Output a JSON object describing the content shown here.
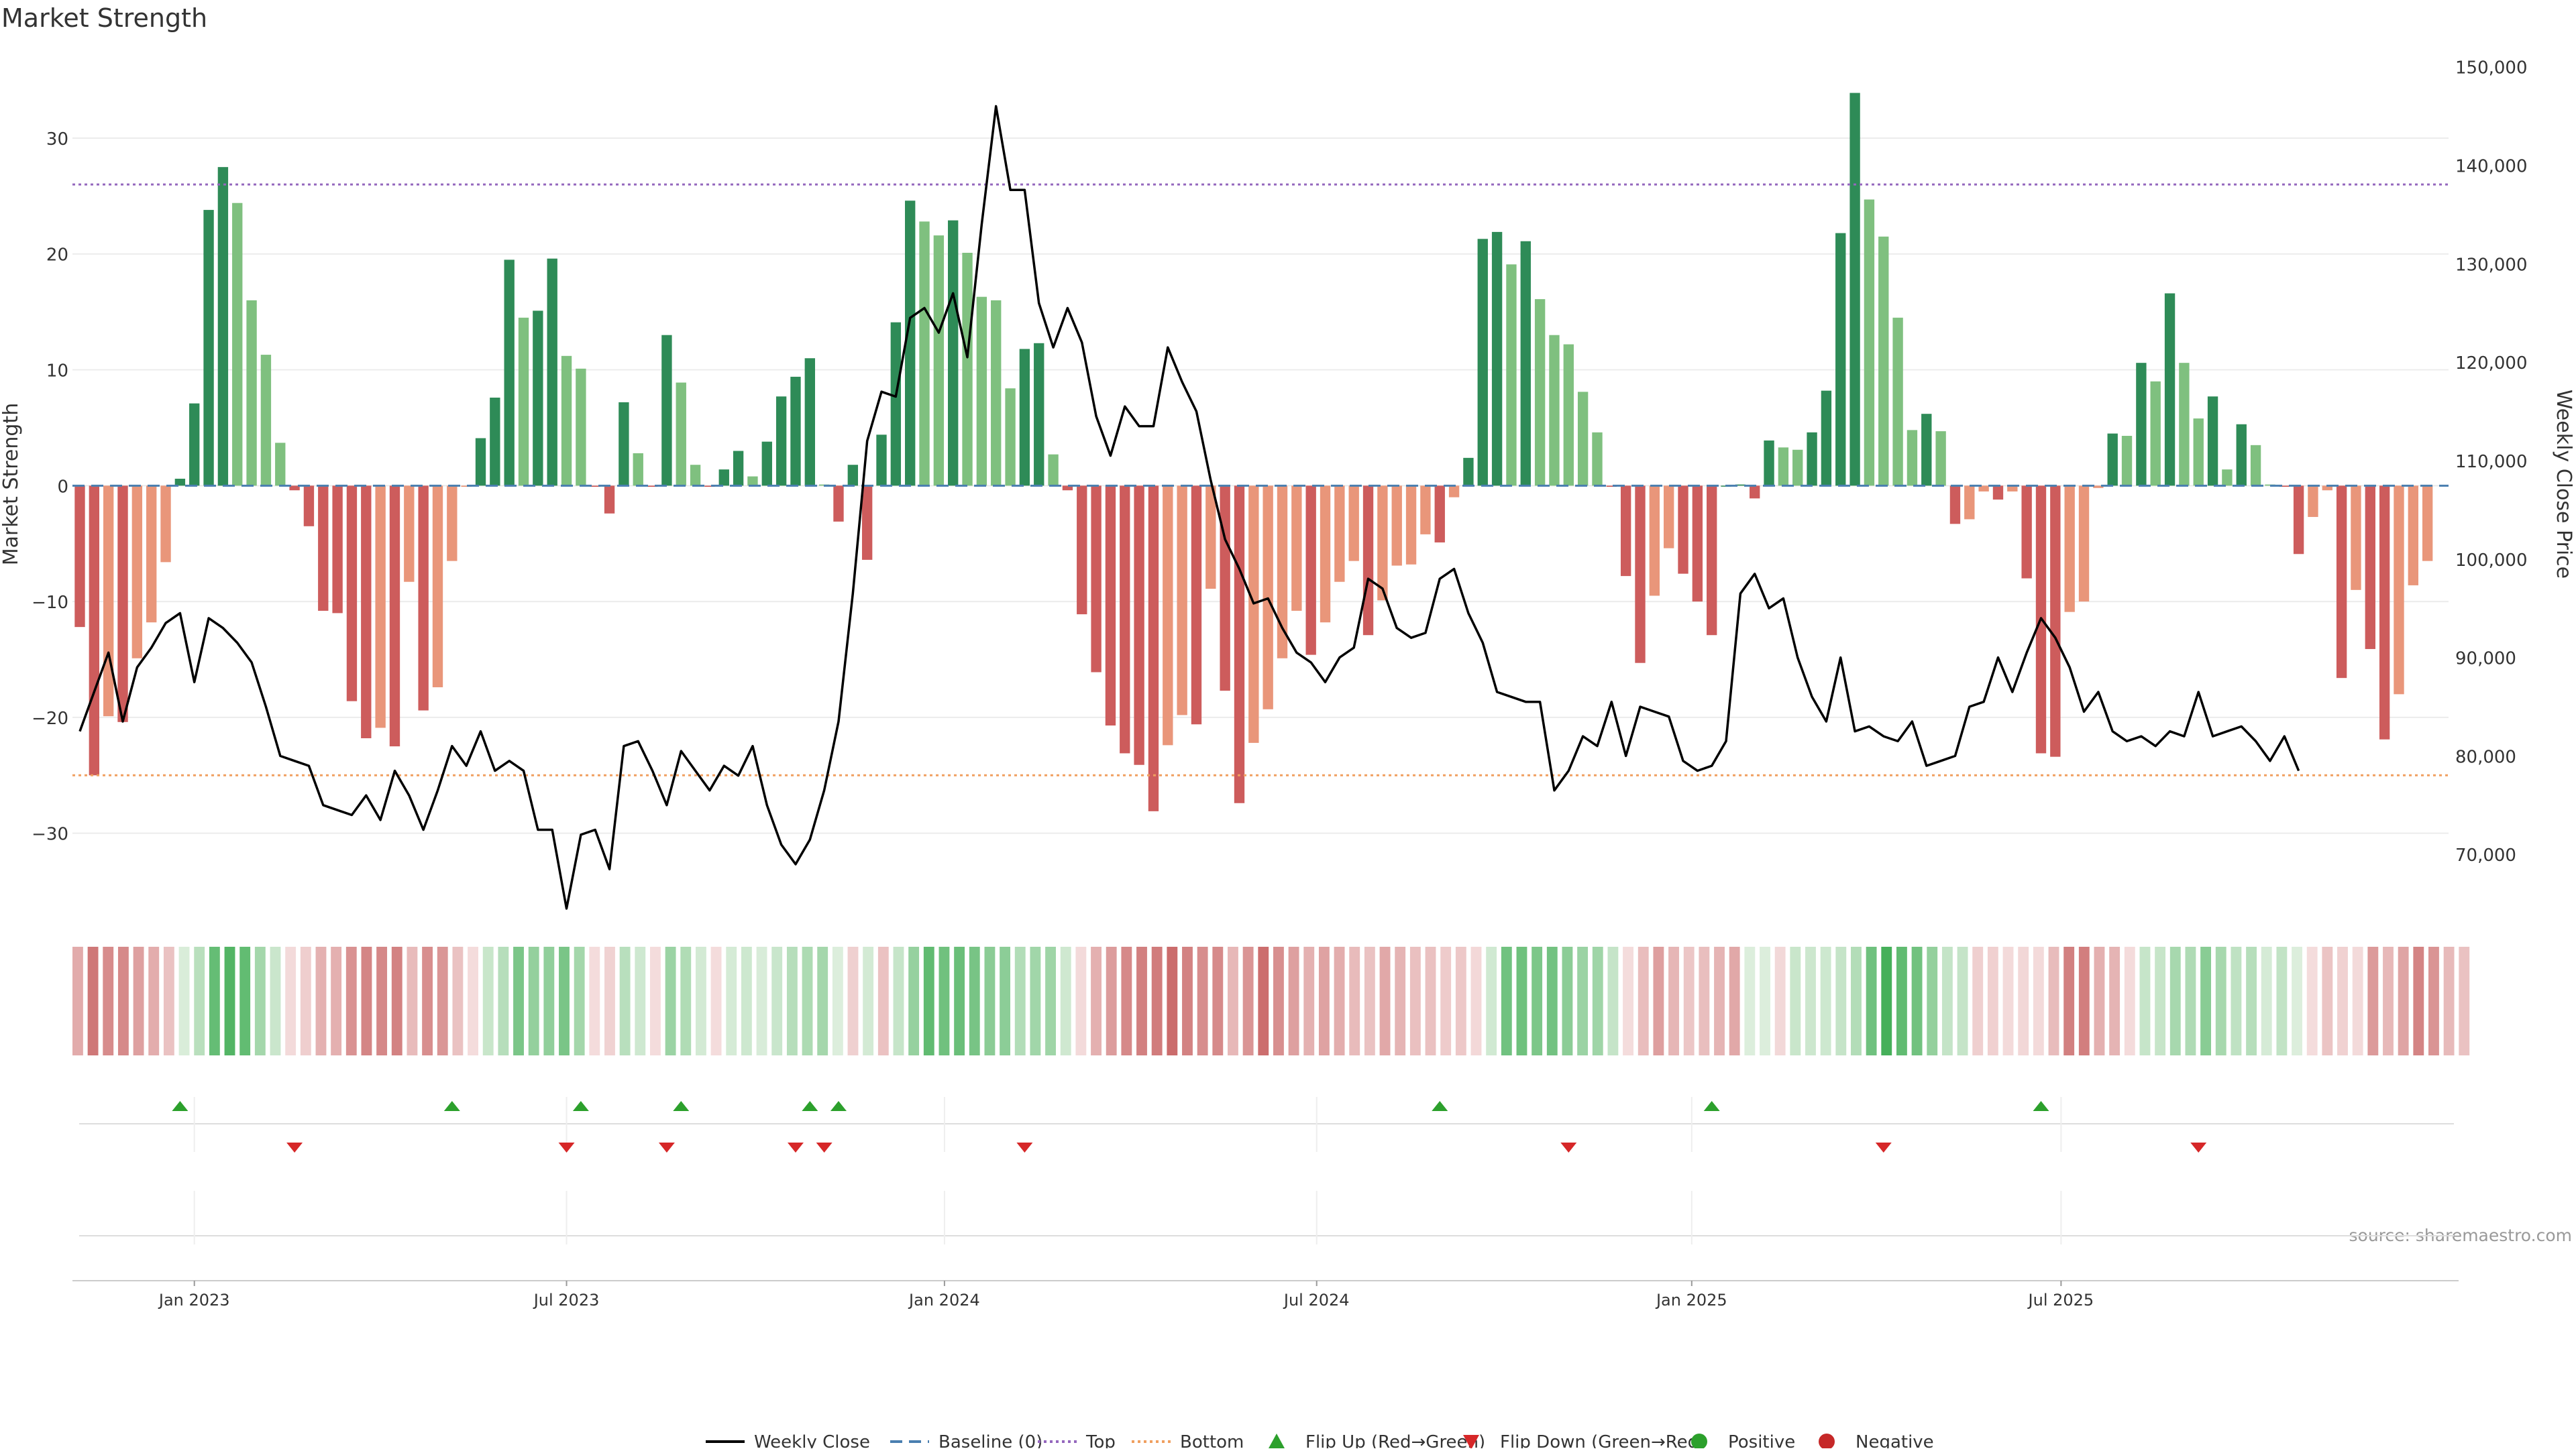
{
  "title": "Market Strength",
  "source": "source: sharemaestro.com",
  "colors": {
    "strong_green": "#2e8b57",
    "light_green": "#7fc07f",
    "strong_red": "#cd5c5c",
    "light_red": "#e9967a",
    "baseline": "#4a7fb0",
    "top_line": "#9467bd",
    "bottom_line": "#f0a060",
    "price_line": "#000000",
    "flip_up": "#2ca02c",
    "flip_down": "#d62728"
  },
  "legend": [
    {
      "label": "Weekly Close",
      "kind": "line",
      "color": "#000000"
    },
    {
      "label": "Baseline (0)",
      "kind": "dash",
      "color": "#4a7fb0"
    },
    {
      "label": "Top",
      "kind": "dot",
      "color": "#9467bd"
    },
    {
      "label": "Bottom",
      "kind": "dot",
      "color": "#f0a060"
    },
    {
      "label": "Flip Up (Red→Green)",
      "kind": "up",
      "color": "#2ca02c"
    },
    {
      "label": "Flip Down (Green→Red)",
      "kind": "down",
      "color": "#d62728"
    },
    {
      "label": "Positive",
      "kind": "circle",
      "color": "#2ca02c"
    },
    {
      "label": "Negative",
      "kind": "circle",
      "color": "#c62828"
    }
  ],
  "chart_data": {
    "type": "bar",
    "ylabel": "Market Strength",
    "y2label": "Weekly Close Price",
    "ylim": [
      -36.5,
      37
    ],
    "y2lim": [
      64500,
      151000
    ],
    "yticks": [
      -30,
      -20,
      -10,
      0,
      10,
      20,
      30
    ],
    "y2ticks": [
      70000,
      80000,
      90000,
      100000,
      110000,
      120000,
      130000,
      140000,
      150000
    ],
    "y2tick_labels": [
      "70,000",
      "80,000",
      "90,000",
      "100,000",
      "110,000",
      "120,000",
      "130,000",
      "140,000",
      "150,000"
    ],
    "x_tick_labels": [
      "Jan 2023",
      "Jul 2023",
      "Jan 2024",
      "Jul 2024",
      "Jan 2025",
      "Jul 2025"
    ],
    "x_tick_weeks": [
      8,
      34,
      60.4,
      86.4,
      112.6,
      138.4
    ],
    "top_level": 26,
    "bottom_level": -25,
    "grid": true,
    "legend_position": "bottom",
    "series": [
      {
        "name": "Market Strength",
        "values": [
          -12.2,
          -25,
          -19.9,
          -20.4,
          -14.9,
          -11.8,
          -6.6,
          0.6,
          7.1,
          23.8,
          27.5,
          24.4,
          16,
          11.3,
          3.7,
          -0.4,
          -3.5,
          -10.8,
          -11,
          -18.6,
          -21.8,
          -20.9,
          -22.5,
          -8.3,
          -19.4,
          -17.4,
          -6.5,
          -0.1,
          4.1,
          7.6,
          19.5,
          14.5,
          15.1,
          19.6,
          11.2,
          10.1,
          -0.1,
          -2.4,
          7.2,
          2.8,
          -0.1,
          13,
          8.9,
          1.8,
          -0.1,
          1.4,
          3,
          0.8,
          3.8,
          7.7,
          9.4,
          11,
          0.1,
          -3.1,
          1.8,
          -6.4,
          4.4,
          14.1,
          24.6,
          22.8,
          21.6,
          22.9,
          20.1,
          16.3,
          16,
          8.4,
          11.8,
          12.3,
          2.7,
          -0.4,
          -11.1,
          -16.1,
          -20.7,
          -23.1,
          -24.1,
          -28.1,
          -22.4,
          -19.8,
          -20.6,
          -8.9,
          -17.7,
          -27.4,
          -22.2,
          -19.3,
          -14.9,
          -10.8,
          -14.6,
          -11.8,
          -8.3,
          -6.5,
          -12.9,
          -9.9,
          -6.9,
          -6.8,
          -4.2,
          -4.9,
          -1,
          2.4,
          21.3,
          21.9,
          19.1,
          21.1,
          16.1,
          13,
          12.2,
          8.1,
          4.6,
          -0.1,
          -7.8,
          -15.3,
          -9.5,
          -5.4,
          -7.6,
          -10,
          -12.9,
          0,
          0.1,
          -1.1,
          3.9,
          3.3,
          3.1,
          4.6,
          8.2,
          21.8,
          33.9,
          24.7,
          21.5,
          14.5,
          4.8,
          6.2,
          4.7,
          -3.3,
          -2.9,
          -0.5,
          -1.2,
          -0.5,
          -8,
          -23.1,
          -23.4,
          -10.9,
          -10,
          -0.2,
          4.5,
          4.3,
          10.6,
          9,
          16.6,
          10.6,
          5.8,
          7.7,
          1.4,
          5.3,
          3.5,
          0.1,
          -0.1,
          -5.9,
          -2.7,
          -0.4,
          -16.6,
          -9,
          -14.1,
          -21.9,
          -18,
          -8.6,
          -6.5
        ]
      },
      {
        "name": "Weekly Close",
        "values": [
          82500,
          86500,
          90500,
          83500,
          89000,
          91000,
          93500,
          94500,
          87500,
          94000,
          93000,
          91500,
          89500,
          85000,
          80000,
          79500,
          79000,
          75000,
          74500,
          74000,
          76000,
          73500,
          78500,
          76000,
          72500,
          76500,
          81000,
          79000,
          82500,
          78500,
          79500,
          78500,
          72500,
          72500,
          64500,
          72000,
          72500,
          68500,
          81000,
          81500,
          78500,
          75000,
          80500,
          78500,
          76500,
          79000,
          78000,
          81000,
          75000,
          71000,
          69000,
          71500,
          76500,
          83500,
          96500,
          112000,
          117000,
          116500,
          124500,
          125500,
          123000,
          127000,
          120500,
          134000,
          146000,
          137500,
          137500,
          126000,
          121500,
          125500,
          122000,
          114500,
          110500,
          115500,
          113500,
          113500,
          121500,
          118000,
          115000,
          108000,
          102000,
          99000,
          95500,
          96000,
          93000,
          90500,
          89500,
          87500,
          90000,
          91000,
          98000,
          97000,
          93000,
          92000,
          92500,
          98000,
          99000,
          94500,
          91500,
          86500,
          86000,
          85500,
          85500,
          76500,
          78500,
          82000,
          81000,
          85500,
          80000,
          85000,
          84500,
          84000,
          79500,
          78500,
          79000,
          81500,
          96500,
          98500,
          95000,
          96000,
          90000,
          86000,
          83500,
          90000,
          82500,
          83000,
          82000,
          81500,
          83500,
          79000,
          79500,
          80000,
          85000,
          85500,
          90000,
          86500,
          90500,
          94000,
          92000,
          89000,
          84500,
          86500,
          82500,
          81500,
          82000,
          81000,
          82500,
          82000,
          86500,
          82000,
          82500,
          83000,
          81500,
          79500,
          82000,
          78500
        ]
      }
    ],
    "strength_band_weeks": 158,
    "flip_up_weeks": [
      7,
      26,
      35,
      42,
      51,
      53,
      95,
      114,
      137
    ],
    "flip_down_weeks": [
      15,
      34,
      41,
      50,
      52,
      66,
      104,
      126,
      148
    ]
  }
}
